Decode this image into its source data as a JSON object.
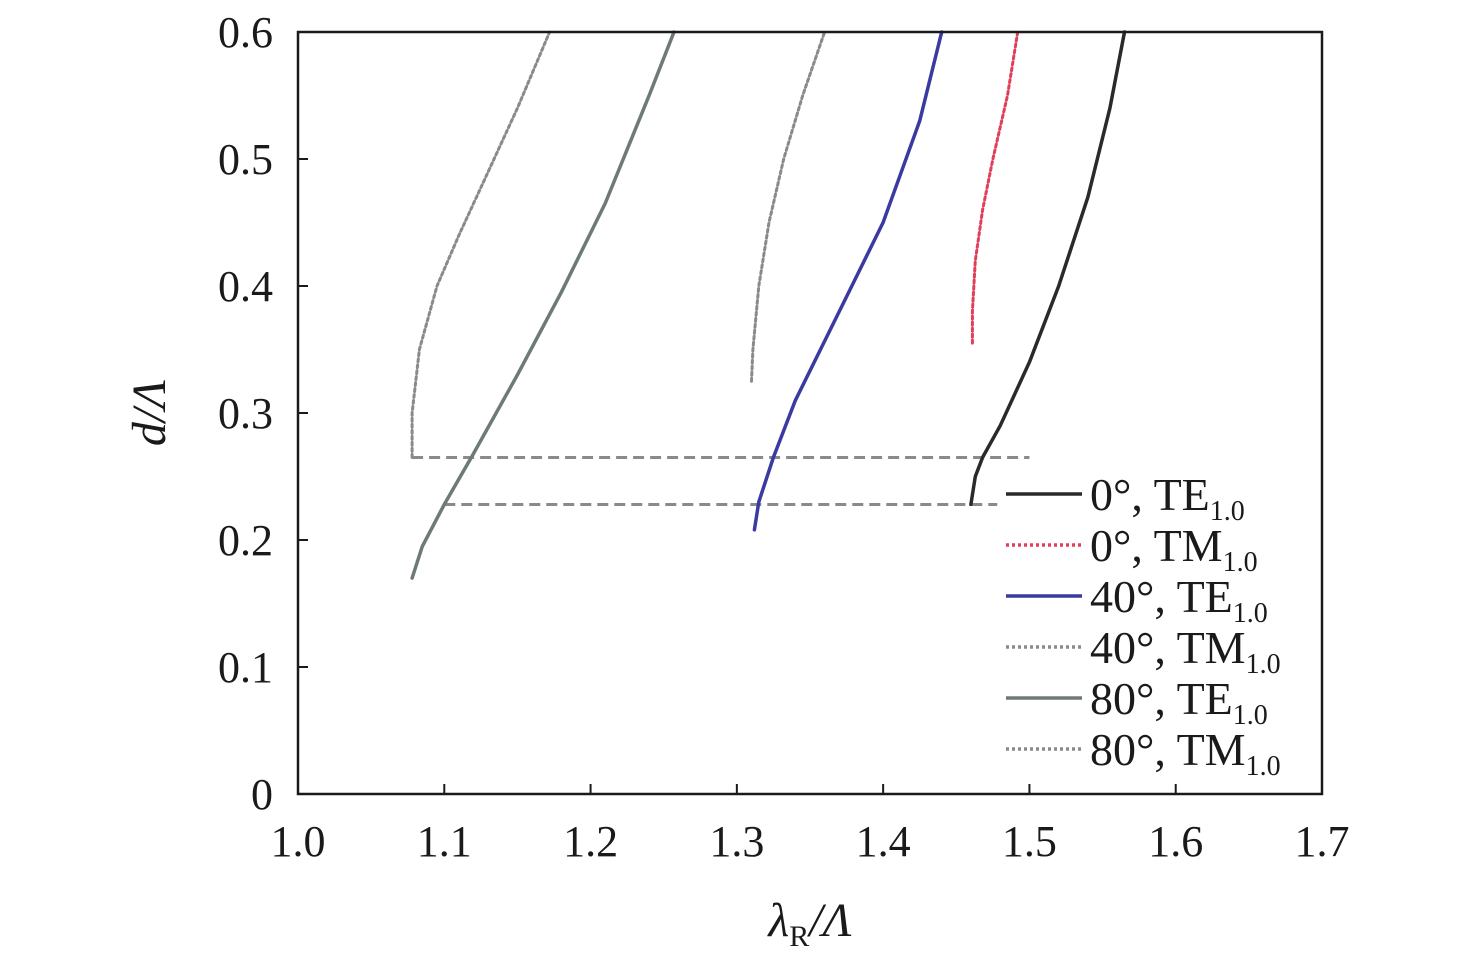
{
  "chart_data": {
    "type": "line",
    "title": "",
    "xlabel": {
      "main": "λ",
      "sub": "R",
      "tail": "/Λ"
    },
    "ylabel": "d/Λ",
    "xlim": [
      1.0,
      1.7
    ],
    "ylim": [
      0.0,
      0.6
    ],
    "xticks": [
      "1.0",
      "1.1",
      "1.2",
      "1.3",
      "1.4",
      "1.5",
      "1.6",
      "1.7"
    ],
    "yticks": [
      "0",
      "0.1",
      "0.2",
      "0.3",
      "0.4",
      "0.5",
      "0.6"
    ],
    "grid": false,
    "legend_position": "lower-right",
    "series": [
      {
        "name": "0°, TE",
        "name_sub": "1.0",
        "color": "#2a2a2a",
        "style": "solid",
        "x": [
          1.46,
          1.463,
          1.468,
          1.48,
          1.5,
          1.52,
          1.54,
          1.555,
          1.565
        ],
        "y": [
          0.228,
          0.25,
          0.265,
          0.29,
          0.34,
          0.4,
          0.47,
          0.54,
          0.6
        ]
      },
      {
        "name": "0°, TM",
        "name_sub": "1.0",
        "color": "#e0405a",
        "style": "dotted",
        "x": [
          1.461,
          1.461,
          1.463,
          1.468,
          1.475,
          1.485,
          1.492
        ],
        "y": [
          0.355,
          0.38,
          0.42,
          0.46,
          0.5,
          0.55,
          0.6
        ]
      },
      {
        "name": "40°, TE",
        "name_sub": "1.0",
        "color": "#3a3aa0",
        "style": "solid",
        "x": [
          1.312,
          1.315,
          1.325,
          1.34,
          1.37,
          1.4,
          1.425,
          1.44
        ],
        "y": [
          0.208,
          0.23,
          0.265,
          0.31,
          0.38,
          0.45,
          0.53,
          0.6
        ]
      },
      {
        "name": "40°, TM",
        "name_sub": "1.0",
        "color": "#8a8a8a",
        "style": "dotted",
        "x": [
          1.31,
          1.311,
          1.315,
          1.322,
          1.332,
          1.345,
          1.36
        ],
        "y": [
          0.325,
          0.35,
          0.4,
          0.45,
          0.5,
          0.55,
          0.6
        ]
      },
      {
        "name": "80°, TE",
        "name_sub": "1.0",
        "color": "#6e7a78",
        "style": "solid",
        "x": [
          1.078,
          1.085,
          1.1,
          1.12,
          1.15,
          1.18,
          1.21,
          1.24,
          1.257
        ],
        "y": [
          0.17,
          0.195,
          0.228,
          0.268,
          0.33,
          0.395,
          0.465,
          0.55,
          0.6
        ]
      },
      {
        "name": "80°, TM",
        "name_sub": "1.0",
        "color": "#8a8a8a",
        "style": "dotted",
        "x": [
          1.078,
          1.078,
          1.083,
          1.095,
          1.11,
          1.13,
          1.15,
          1.172
        ],
        "y": [
          0.265,
          0.3,
          0.35,
          0.4,
          0.44,
          0.49,
          0.54,
          0.6
        ]
      }
    ],
    "reference_lines": [
      {
        "y": 0.265,
        "x_start": 1.078,
        "x_end": 1.5,
        "color": "#8a8a8a",
        "style": "dashed"
      },
      {
        "y": 0.228,
        "x_start": 1.1,
        "x_end": 1.478,
        "color": "#8a8a8a",
        "style": "dashed"
      }
    ]
  }
}
